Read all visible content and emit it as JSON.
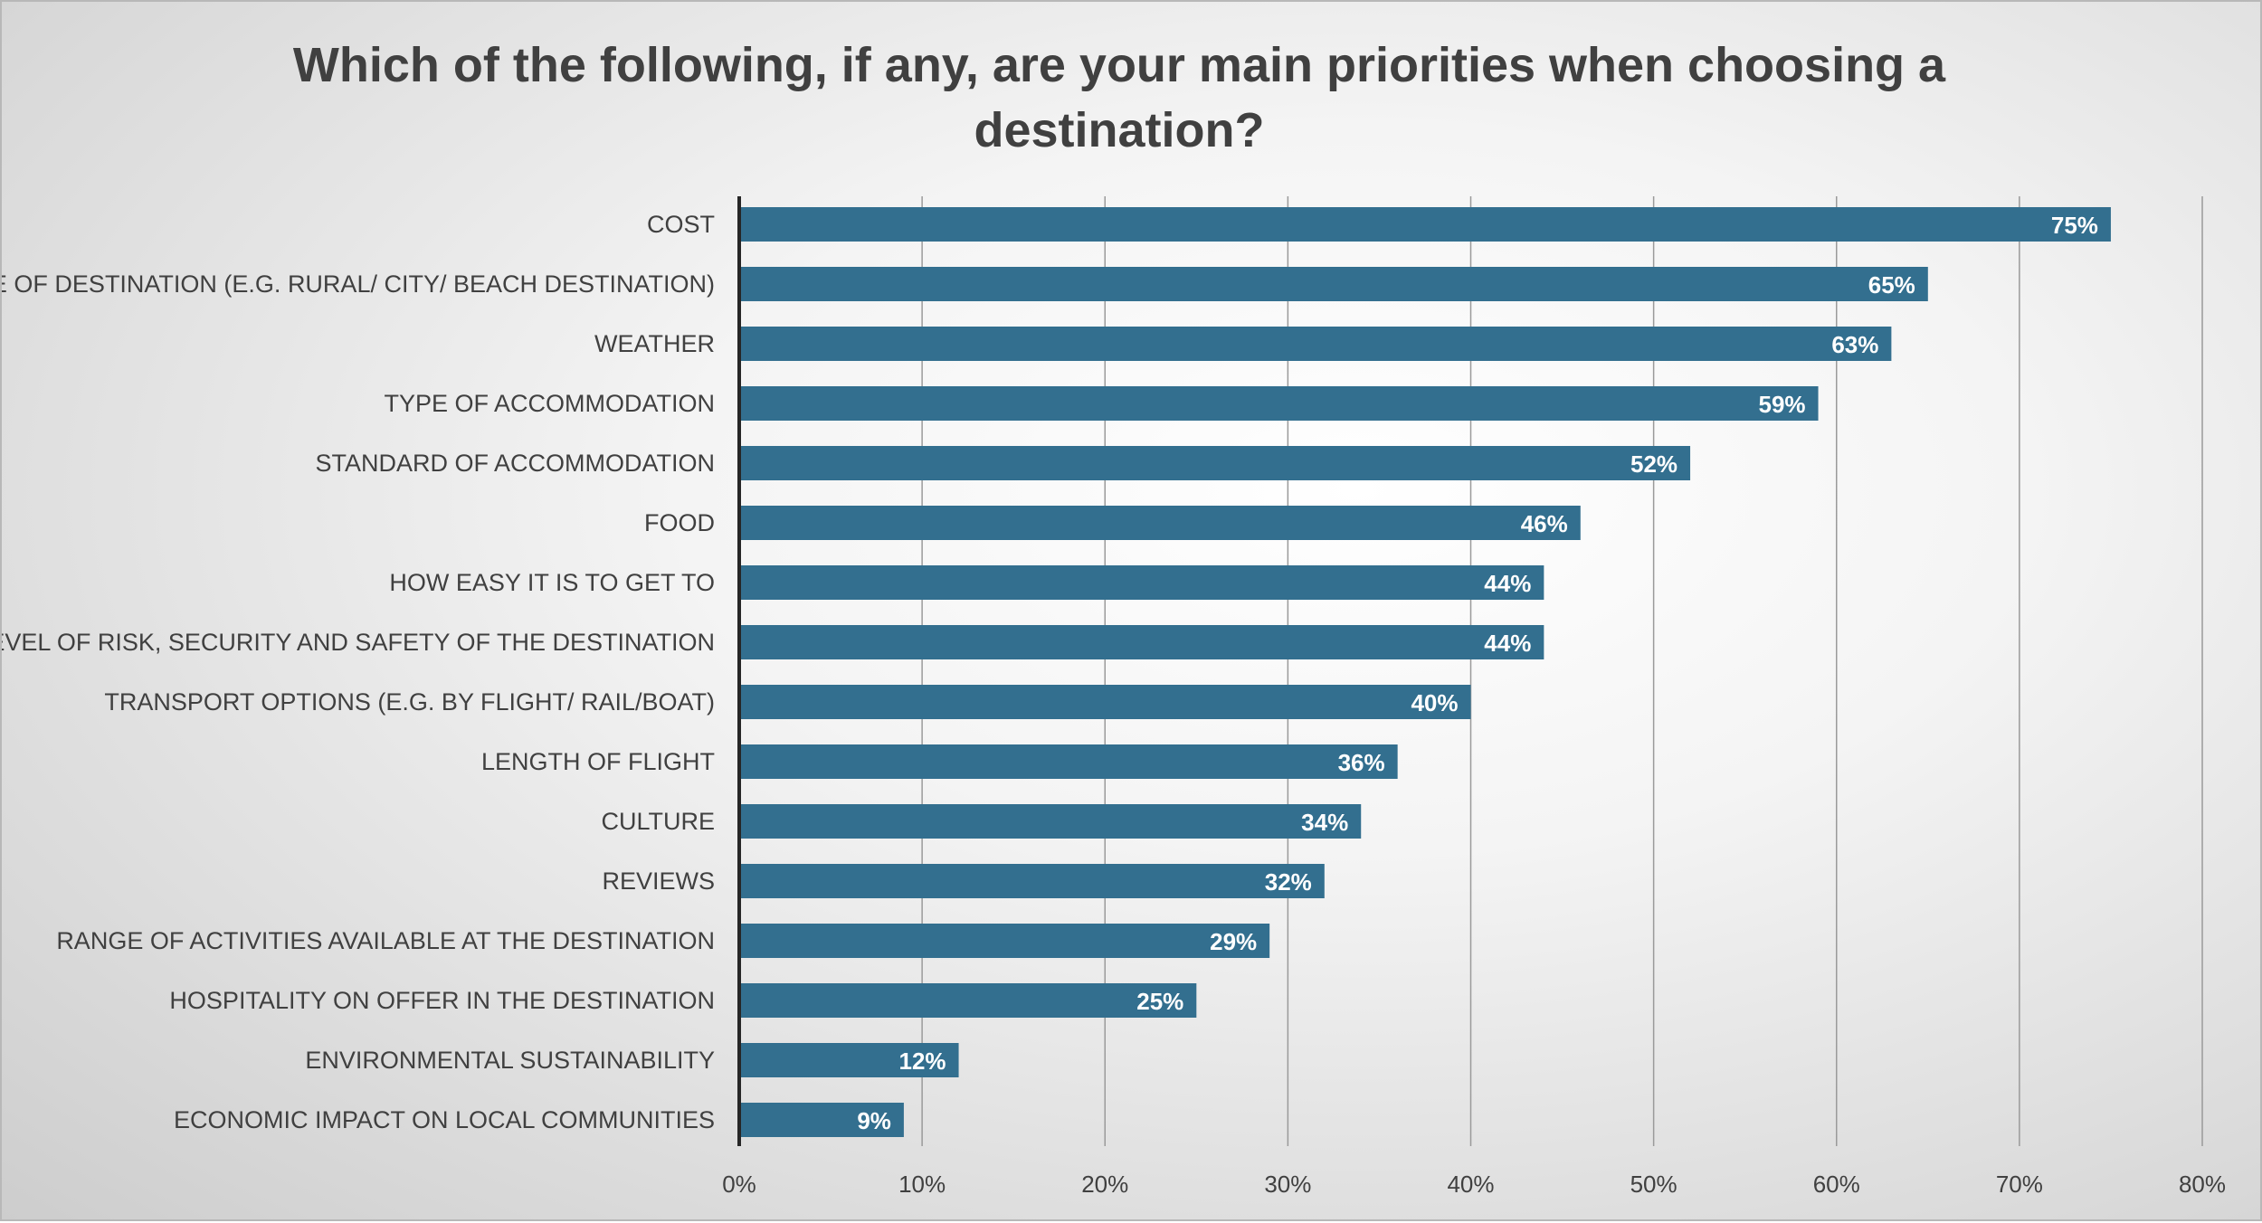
{
  "chart_data": {
    "type": "bar",
    "orientation": "horizontal",
    "title_lines": [
      "Which of the following, if any, are your main priorities when choosing a",
      "destination?"
    ],
    "categories": [
      "COST",
      "TYPE OF DESTINATION (E.G. RURAL/ CITY/ BEACH DESTINATION)",
      "WEATHER",
      "TYPE OF ACCOMMODATION",
      "STANDARD OF ACCOMMODATION",
      "FOOD",
      "HOW EASY IT IS TO GET TO",
      "LEVEL OF RISK, SECURITY AND SAFETY OF THE DESTINATION",
      "TRANSPORT OPTIONS (E.G. BY FLIGHT/ RAIL/BOAT)",
      "LENGTH OF FLIGHT",
      "CULTURE",
      "REVIEWS",
      "RANGE OF ACTIVITIES AVAILABLE AT THE DESTINATION",
      "HOSPITALITY ON OFFER IN THE DESTINATION",
      "ENVIRONMENTAL SUSTAINABILITY",
      "ECONOMIC IMPACT ON LOCAL COMMUNITIES"
    ],
    "values": [
      75,
      65,
      63,
      59,
      52,
      46,
      44,
      44,
      40,
      36,
      34,
      32,
      29,
      25,
      12,
      9
    ],
    "value_labels": [
      "75%",
      "65%",
      "63%",
      "59%",
      "52%",
      "46%",
      "44%",
      "44%",
      "40%",
      "36%",
      "34%",
      "32%",
      "29%",
      "25%",
      "12%",
      "9%"
    ],
    "xlim": [
      0,
      80
    ],
    "xticks": [
      0,
      10,
      20,
      30,
      40,
      50,
      60,
      70,
      80
    ],
    "xtick_labels": [
      "0%",
      "10%",
      "20%",
      "30%",
      "40%",
      "50%",
      "60%",
      "70%",
      "80%"
    ],
    "xlabel": "",
    "ylabel": "",
    "grid": true,
    "legend": "none",
    "colors": {
      "bar": "#336f8f",
      "gridline": "#9a9a9a",
      "axis": "#262626"
    }
  }
}
